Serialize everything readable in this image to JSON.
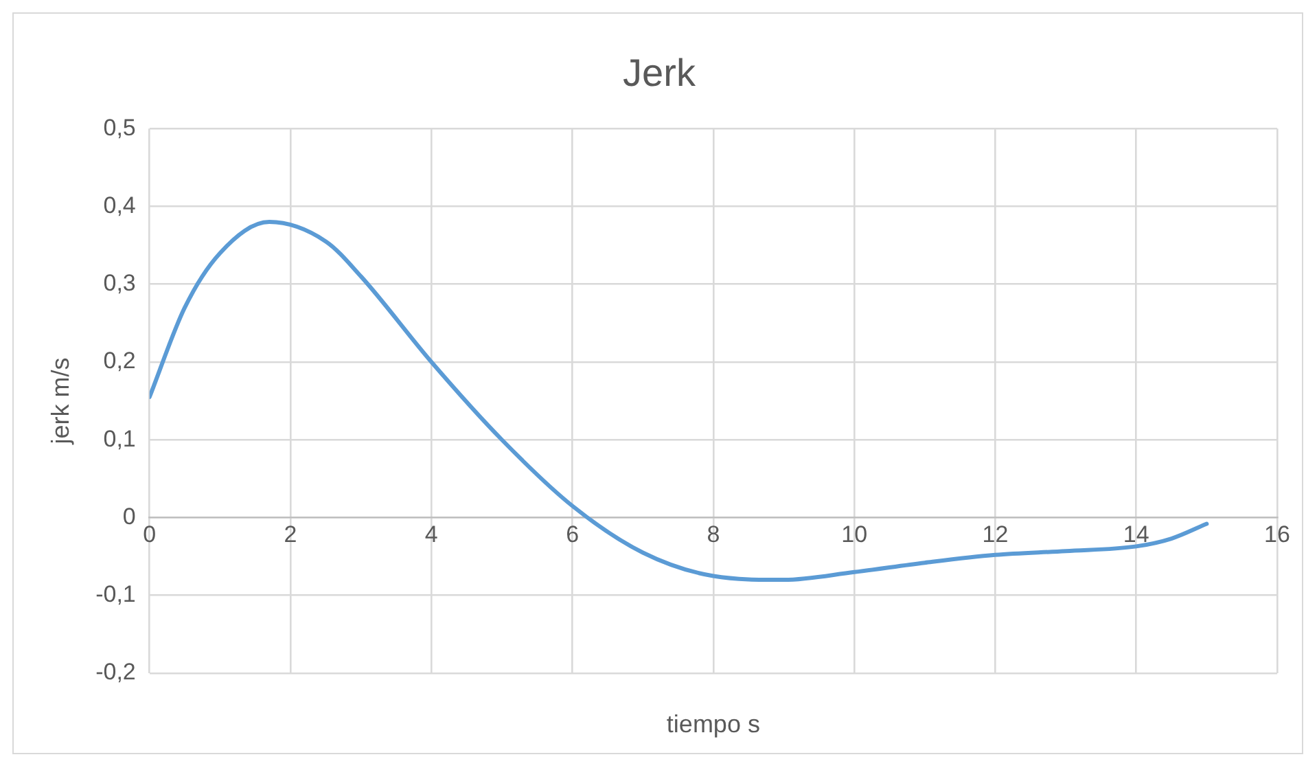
{
  "chart_data": {
    "type": "line",
    "title": "Jerk",
    "xlabel": "tiempo s",
    "ylabel": "jerk m/s",
    "series": [
      {
        "color": "#5b9bd5",
        "x": [
          0,
          0.5,
          1,
          1.7,
          2.5,
          3,
          4,
          5,
          6,
          7,
          8,
          9,
          10,
          11,
          12,
          13,
          14,
          14.5,
          15
        ],
        "values": [
          0.155,
          0.27,
          0.34,
          0.38,
          0.355,
          0.31,
          0.2,
          0.1,
          0.015,
          -0.045,
          -0.075,
          -0.08,
          -0.07,
          -0.058,
          -0.048,
          -0.043,
          -0.037,
          -0.027,
          -0.008
        ]
      }
    ],
    "xlim": [
      0,
      16
    ],
    "xticks": [
      0,
      2,
      4,
      6,
      8,
      10,
      12,
      14,
      16
    ],
    "ylim": [
      -0.2,
      0.5
    ],
    "yticks": [
      {
        "value": -0.2,
        "label": "-0,2"
      },
      {
        "value": -0.1,
        "label": "-0,1"
      },
      {
        "value": 0,
        "label": "0"
      },
      {
        "value": 0.1,
        "label": "0,1"
      },
      {
        "value": 0.2,
        "label": "0,2"
      },
      {
        "value": 0.3,
        "label": "0,3"
      },
      {
        "value": 0.4,
        "label": "0,4"
      },
      {
        "value": 0.5,
        "label": "0,5"
      }
    ],
    "grid": true,
    "marker": "none",
    "line_style": "solid",
    "legend": false
  }
}
